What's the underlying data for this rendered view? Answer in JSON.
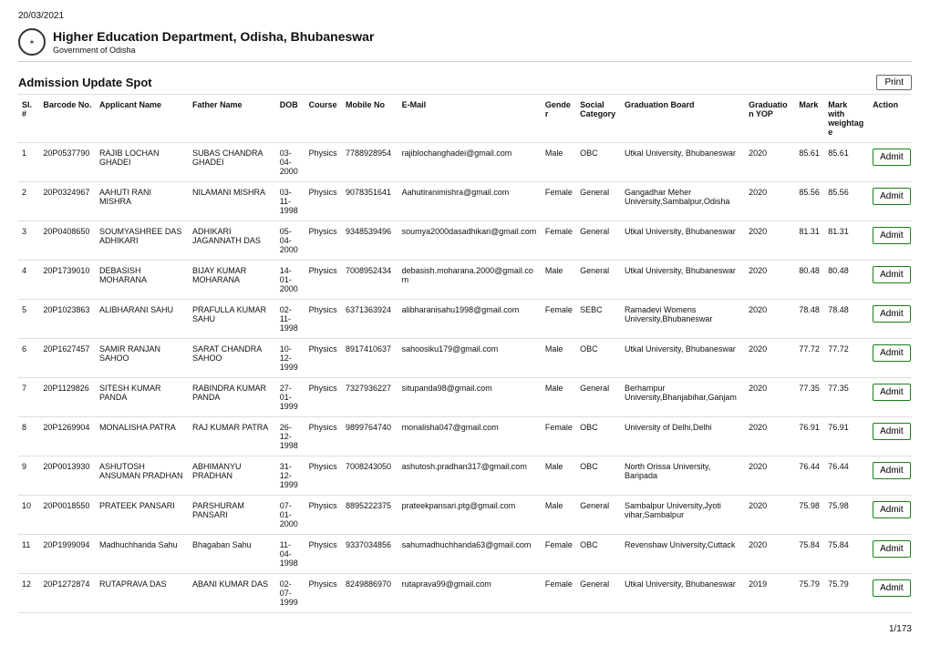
{
  "date": "20/03/2021",
  "header": {
    "title": "Higher Education Department, Odisha, Bhubaneswar",
    "subtitle": "Government of Odisha"
  },
  "section_title": "Admission Update Spot",
  "print_label": "Print",
  "admit_label": "Admit",
  "pager": "1/173",
  "columns": {
    "sl": "Sl.#",
    "barcode": "Barcode No.",
    "applicant": "Applicant Name",
    "father": "Father Name",
    "dob": "DOB",
    "course": "Course",
    "mobile": "Mobile No",
    "email": "E-Mail",
    "gender": "Gender",
    "social": "Social Category",
    "board": "Graduation Board",
    "yop": "Graduation YOP",
    "mark": "Mark",
    "markw": "Mark with weightage",
    "action": "Action"
  },
  "rows": [
    {
      "sl": "1",
      "barcode": "20P0537790",
      "applicant": "RAJIB LOCHAN GHADEI",
      "father": "SUBAS CHANDRA GHADEI",
      "dob": "03-04-2000",
      "course": "Physics",
      "mobile": "7788928954",
      "email": "rajiblochanghadei@gmail.com",
      "gender": "Male",
      "social": "OBC",
      "board": "Utkal University, Bhubaneswar",
      "yop": "2020",
      "mark": "85.61",
      "markw": "85.61"
    },
    {
      "sl": "2",
      "barcode": "20P0324967",
      "applicant": "AAHUTI RANI MISHRA",
      "father": "NILAMANI MISHRA",
      "dob": "03-11-1998",
      "course": "Physics",
      "mobile": "9078351641",
      "email": "Aahutiranimishra@gmail.com",
      "gender": "Female",
      "social": "General",
      "board": "Gangadhar Meher University,Sambalpur,Odisha",
      "yop": "2020",
      "mark": "85.56",
      "markw": "85.56"
    },
    {
      "sl": "3",
      "barcode": "20P0408650",
      "applicant": "SOUMYASHREE DAS ADHIKARI",
      "father": "ADHIKARI JAGANNATH DAS",
      "dob": "05-04-2000",
      "course": "Physics",
      "mobile": "9348539496",
      "email": "soumya2000dasadhikari@gmail.com",
      "gender": "Female",
      "social": "General",
      "board": "Utkal University, Bhubaneswar",
      "yop": "2020",
      "mark": "81.31",
      "markw": "81.31"
    },
    {
      "sl": "4",
      "barcode": "20P1739010",
      "applicant": "DEBASISH MOHARANA",
      "father": "BIJAY KUMAR MOHARANA",
      "dob": "14-01-2000",
      "course": "Physics",
      "mobile": "7008952434",
      "email": "debasish.moharana.2000@gmail.com",
      "gender": "Male",
      "social": "General",
      "board": "Utkal University, Bhubaneswar",
      "yop": "2020",
      "mark": "80.48",
      "markw": "80.48"
    },
    {
      "sl": "5",
      "barcode": "20P1023863",
      "applicant": "ALIBHARANI SAHU",
      "father": "PRAFULLA KUMAR SAHU",
      "dob": "02-11-1998",
      "course": "Physics",
      "mobile": "6371363924",
      "email": "alibharanisahu1998@gmail.com",
      "gender": "Female",
      "social": "SEBC",
      "board": "Ramadevi Womens University,Bhubaneswar",
      "yop": "2020",
      "mark": "78.48",
      "markw": "78.48"
    },
    {
      "sl": "6",
      "barcode": "20P1627457",
      "applicant": "SAMIR RANJAN SAHOO",
      "father": "SARAT CHANDRA SAHOO",
      "dob": "10-12-1999",
      "course": "Physics",
      "mobile": "8917410637",
      "email": "sahoosiku179@gmail.com",
      "gender": "Male",
      "social": "OBC",
      "board": "Utkal University, Bhubaneswar",
      "yop": "2020",
      "mark": "77.72",
      "markw": "77.72"
    },
    {
      "sl": "7",
      "barcode": "20P1129826",
      "applicant": "SITESH KUMAR PANDA",
      "father": "RABINDRA KUMAR PANDA",
      "dob": "27-01-1999",
      "course": "Physics",
      "mobile": "7327936227",
      "email": "situpanda98@gmail.com",
      "gender": "Male",
      "social": "General",
      "board": "Berhampur University,Bhanjabihar,Ganjam",
      "yop": "2020",
      "mark": "77.35",
      "markw": "77.35"
    },
    {
      "sl": "8",
      "barcode": "20P1269904",
      "applicant": "MONALISHA PATRA",
      "father": "RAJ KUMAR PATRA",
      "dob": "26-12-1998",
      "course": "Physics",
      "mobile": "9899764740",
      "email": "monalisha047@gmail.com",
      "gender": "Female",
      "social": "OBC",
      "board": "University of Delhi,Delhi",
      "yop": "2020",
      "mark": "76.91",
      "markw": "76.91"
    },
    {
      "sl": "9",
      "barcode": "20P0013930",
      "applicant": "ASHUTOSH ANSUMAN PRADHAN",
      "father": "ABHIMANYU PRADHAN",
      "dob": "31-12-1999",
      "course": "Physics",
      "mobile": "7008243050",
      "email": "ashutosh.pradhan317@gmail.com",
      "gender": "Male",
      "social": "OBC",
      "board": "North Orissa University, Baripada",
      "yop": "2020",
      "mark": "76.44",
      "markw": "76.44"
    },
    {
      "sl": "10",
      "barcode": "20P0018550",
      "applicant": "PRATEEK PANSARI",
      "father": "PARSHURAM PANSARI",
      "dob": "07-01-2000",
      "course": "Physics",
      "mobile": "8895222375",
      "email": "prateekpansari.ptg@gmail.com",
      "gender": "Male",
      "social": "General",
      "board": "Sambalpur University,Jyoti vihar,Sambalpur",
      "yop": "2020",
      "mark": "75.98",
      "markw": "75.98"
    },
    {
      "sl": "11",
      "barcode": "20P1999094",
      "applicant": "Madhuchhanda Sahu",
      "father": "Bhagaban Sahu",
      "dob": "11-04-1998",
      "course": "Physics",
      "mobile": "9337034856",
      "email": "sahumadhuchhanda63@gmail.com",
      "gender": "Female",
      "social": "OBC",
      "board": "Revenshaw University,Cuttack",
      "yop": "2020",
      "mark": "75.84",
      "markw": "75.84"
    },
    {
      "sl": "12",
      "barcode": "20P1272874",
      "applicant": "RUTAPRAVA DAS",
      "father": "ABANI KUMAR DAS",
      "dob": "02-07-1999",
      "course": "Physics",
      "mobile": "8249886970",
      "email": "rutaprava99@gmail.com",
      "gender": "Female",
      "social": "General",
      "board": "Utkal University, Bhubaneswar",
      "yop": "2019",
      "mark": "75.79",
      "markw": "75.79"
    }
  ]
}
